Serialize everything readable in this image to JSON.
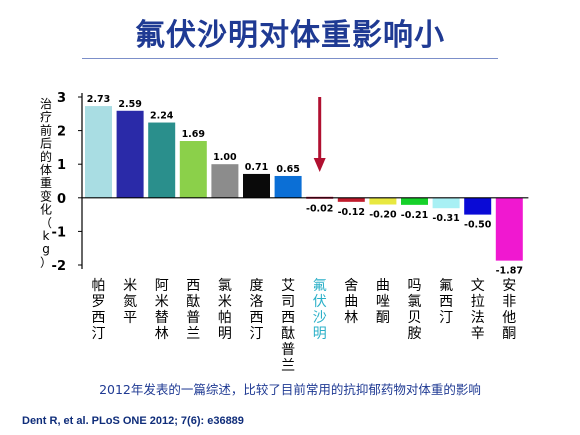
{
  "slide": {
    "title": "氟伏沙明对体重影响小",
    "note": "2012年发表的一篇综述，比较了目前常用的抗抑郁药物对体重的影响",
    "citation": "Dent R, et al. PLoS ONE 2012; 7(6): e36889"
  },
  "chart_data": {
    "type": "bar",
    "ylabel": "治疗前后的体重变化（kg）",
    "ylim": [
      -2,
      3
    ],
    "yticks": [
      3,
      2,
      1,
      0,
      -1,
      -2
    ],
    "grid": false,
    "categories": [
      "帕罗西汀",
      "米氮平",
      "阿米替林",
      "西酞普兰",
      "氯米帕明",
      "度洛西汀",
      "艾司西酞普兰",
      "氟伏沙明",
      "舍曲林",
      "曲唑酮",
      "吗氯贝胺",
      "氟西汀",
      "文拉法辛",
      "安非他酮"
    ],
    "values": [
      2.73,
      2.59,
      2.24,
      1.69,
      1.0,
      0.71,
      0.65,
      -0.02,
      -0.12,
      -0.2,
      -0.21,
      -0.31,
      -0.5,
      -1.87
    ],
    "value_labels": [
      "2.73",
      "2.59",
      "2.24",
      "1.69",
      "1.00",
      "0.71",
      "0.65",
      "-0.02",
      "-0.12",
      "-0.20",
      "-0.21",
      "-0.31",
      "-0.50",
      "-1.87"
    ],
    "colors": [
      "#a9dde3",
      "#2a2aa8",
      "#2a8f8c",
      "#8bd04a",
      "#8c8c8c",
      "#0a0a0a",
      "#0b6fd6",
      "#c41b45",
      "#c01b2c",
      "#e8e840",
      "#16d12a",
      "#a8f0f4",
      "#0a0ad6",
      "#f018d0"
    ],
    "highlight": {
      "category": "氟伏沙明",
      "label_color": "#2bb0c8",
      "arrow_color": "#b01030"
    }
  }
}
